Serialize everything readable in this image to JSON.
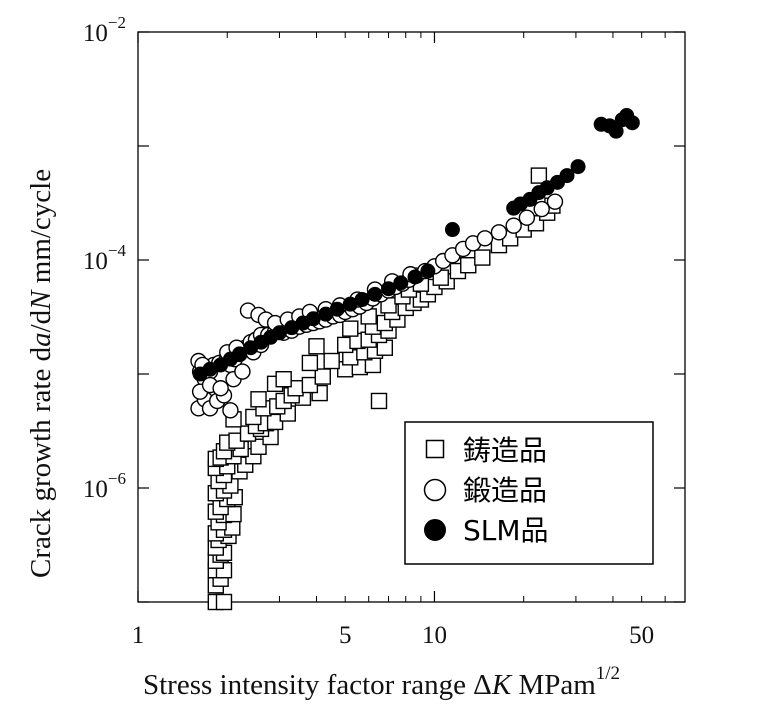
{
  "chart_data": {
    "type": "scatter",
    "xlabel": "Stress intensity factor range ΔK MPam^1/2",
    "xlabel_parts": {
      "main": "Stress intensity factor range  Δ",
      "italic": "K",
      "unit": "  MPam",
      "sup": "1/2"
    },
    "ylabel": "Crack growth rate da/dN mm/cycle",
    "ylabel_parts": {
      "main": "Crack growth rate d",
      "italic_a": "a",
      "mid": "/d",
      "italic_N": "N",
      "unit": "  mm/cycle"
    },
    "x_scale": "log",
    "y_scale": "log",
    "xlim": [
      1,
      70
    ],
    "ylim": [
      1e-07,
      0.01
    ],
    "x_ticks": [
      {
        "value": 1,
        "label": "1"
      },
      {
        "value": 5,
        "label": "5"
      },
      {
        "value": 10,
        "label": "10"
      },
      {
        "value": 50,
        "label": "50"
      }
    ],
    "y_ticks": [
      {
        "value": 0.01,
        "base": "10",
        "exp": "−2"
      },
      {
        "value": 0.0001,
        "base": "10",
        "exp": "−4"
      },
      {
        "value": 1e-06,
        "base": "10",
        "exp": "−6"
      }
    ],
    "grid": false,
    "legend_position": "bottom-right",
    "series": [
      {
        "name": "鋳造品",
        "marker": "square-open",
        "color": "#000000",
        "points": [
          [
            1.83,
            1e-07
          ],
          [
            1.95,
            1e-07
          ],
          [
            1.83,
            1.4e-07
          ],
          [
            1.9,
            1.6e-07
          ],
          [
            1.83,
            1.9e-07
          ],
          [
            1.95,
            1.9e-07
          ],
          [
            1.83,
            2.3e-07
          ],
          [
            1.9,
            2.6e-07
          ],
          [
            1.95,
            2.7e-07
          ],
          [
            1.83,
            3e-07
          ],
          [
            1.87,
            3.5e-07
          ],
          [
            2.02,
            3.8e-07
          ],
          [
            1.83,
            4e-07
          ],
          [
            1.95,
            4.3e-07
          ],
          [
            2.08,
            4.5e-07
          ],
          [
            1.87,
            5e-07
          ],
          [
            1.95,
            5.8e-07
          ],
          [
            2.1,
            5.9e-07
          ],
          [
            1.83,
            6.2e-07
          ],
          [
            1.9,
            6.8e-07
          ],
          [
            2.0,
            8e-07
          ],
          [
            2.12,
            8.3e-07
          ],
          [
            1.83,
            9e-07
          ],
          [
            1.95,
            9.5e-07
          ],
          [
            2.05,
            1.05e-06
          ],
          [
            1.87,
            1.15e-06
          ],
          [
            1.95,
            1.3e-06
          ],
          [
            2.2,
            1.4e-06
          ],
          [
            1.83,
            1.5e-06
          ],
          [
            2.0,
            1.55e-06
          ],
          [
            2.3,
            1.6e-06
          ],
          [
            1.83,
            1.8e-06
          ],
          [
            1.9,
            1.85e-06
          ],
          [
            2.1,
            1.9e-06
          ],
          [
            2.45,
            1.9e-06
          ],
          [
            1.95,
            2.1e-06
          ],
          [
            2.22,
            2.2e-06
          ],
          [
            2.55,
            2.3e-06
          ],
          [
            2.0,
            2.5e-06
          ],
          [
            2.15,
            2.6e-06
          ],
          [
            2.8,
            2.8e-06
          ],
          [
            2.35,
            3e-06
          ],
          [
            2.6,
            3.3e-06
          ],
          [
            2.5,
            3.5e-06
          ],
          [
            2.7,
            3.7e-06
          ],
          [
            2.9,
            3.8e-06
          ],
          [
            2.1,
            4e-06
          ],
          [
            2.45,
            4.2e-06
          ],
          [
            3.2,
            4.5e-06
          ],
          [
            2.65,
            5e-06
          ],
          [
            2.95,
            5.2e-06
          ],
          [
            3.1,
            5.8e-06
          ],
          [
            2.55,
            6e-06
          ],
          [
            3.6,
            6.2e-06
          ],
          [
            3.3,
            6.5e-06
          ],
          [
            4.1,
            6.8e-06
          ],
          [
            3.4,
            7.5e-06
          ],
          [
            3.8,
            8e-06
          ],
          [
            2.9,
            8.2e-06
          ],
          [
            3.1,
            9e-06
          ],
          [
            4.2,
            9.5e-06
          ],
          [
            5.0,
            1.1e-05
          ],
          [
            5.6,
            1.15e-05
          ],
          [
            6.2,
            1.2e-05
          ],
          [
            3.8,
            1.25e-05
          ],
          [
            4.5,
            1.3e-05
          ],
          [
            5.2,
            1.4e-05
          ],
          [
            5.8,
            1.55e-05
          ],
          [
            6.3,
            1.6e-05
          ],
          [
            6.8,
            1.7e-05
          ],
          [
            4.0,
            1.75e-05
          ],
          [
            5.0,
            1.8e-05
          ],
          [
            5.5,
            1.95e-05
          ],
          [
            6.0,
            2e-05
          ],
          [
            6.5,
            2.2e-05
          ],
          [
            7.0,
            2.4e-05
          ],
          [
            5.2,
            2.5e-05
          ],
          [
            6.2,
            2.6e-05
          ],
          [
            6.8,
            2.8e-05
          ],
          [
            7.5,
            3e-05
          ],
          [
            6.0,
            3.2e-05
          ],
          [
            7.2,
            3.5e-05
          ],
          [
            8.0,
            3.8e-05
          ],
          [
            7.0,
            4e-05
          ],
          [
            8.5,
            4.2e-05
          ],
          [
            9.0,
            4.5e-05
          ],
          [
            7.8,
            4.8e-05
          ],
          [
            9.5,
            5e-05
          ],
          [
            8.2,
            5.5e-05
          ],
          [
            10.0,
            5.8e-05
          ],
          [
            9.0,
            6.2e-05
          ],
          [
            11.0,
            6.5e-05
          ],
          [
            10.5,
            7e-05
          ],
          [
            12.0,
            8e-05
          ],
          [
            13.0,
            9e-05
          ],
          [
            14.5,
            0.000105
          ],
          [
            16.5,
            0.000135
          ],
          [
            18.0,
            0.000155
          ],
          [
            20.0,
            0.000185
          ],
          [
            22.0,
            0.00021
          ],
          [
            24.0,
            0.00026
          ],
          [
            25.0,
            0.0003
          ],
          [
            22.5,
            0.00055
          ],
          [
            6.5,
            5.8e-06
          ]
        ]
      },
      {
        "name": "鍛造品",
        "marker": "circle-open",
        "color": "#000000",
        "points": [
          [
            1.6,
            1.3e-05
          ],
          [
            1.62,
            1.05e-05
          ],
          [
            1.68,
            9e-06
          ],
          [
            1.75,
            1.05e-05
          ],
          [
            1.8,
            1.2e-05
          ],
          [
            1.88,
            1.25e-05
          ],
          [
            1.98,
            1.3e-05
          ],
          [
            2.05,
            1.2e-05
          ],
          [
            2.12,
            1.35e-05
          ],
          [
            2.2,
            1.5e-05
          ],
          [
            2.3,
            1.7e-05
          ],
          [
            2.4,
            1.9e-05
          ],
          [
            2.5,
            2e-05
          ],
          [
            2.6,
            2.2e-05
          ],
          [
            2.75,
            2.2e-05
          ],
          [
            2.9,
            2.35e-05
          ],
          [
            3.1,
            2.3e-05
          ],
          [
            3.3,
            2.4e-05
          ],
          [
            3.5,
            2.6e-05
          ],
          [
            3.7,
            2.7e-05
          ],
          [
            3.9,
            2.8e-05
          ],
          [
            4.1,
            2.9e-05
          ],
          [
            4.3,
            3e-05
          ],
          [
            4.55,
            3.2e-05
          ],
          [
            4.8,
            3.3e-05
          ],
          [
            5.0,
            3.5e-05
          ],
          [
            5.3,
            3.7e-05
          ],
          [
            5.6,
            3.9e-05
          ],
          [
            5.9,
            4.2e-05
          ],
          [
            6.2,
            4.6e-05
          ],
          [
            6.6,
            5e-05
          ],
          [
            7.0,
            5.4e-05
          ],
          [
            7.4,
            5.8e-05
          ],
          [
            7.8,
            6.2e-05
          ],
          [
            8.2,
            6.7e-05
          ],
          [
            8.7,
            7.3e-05
          ],
          [
            9.3,
            8e-05
          ],
          [
            10.0,
            8.8e-05
          ],
          [
            10.7,
            9.8e-05
          ],
          [
            11.5,
            0.00011
          ],
          [
            12.5,
            0.000125
          ],
          [
            13.5,
            0.00014
          ],
          [
            14.8,
            0.000155
          ],
          [
            16.5,
            0.000175
          ],
          [
            18.5,
            0.0002
          ],
          [
            20.5,
            0.000235
          ],
          [
            23.0,
            0.00028
          ],
          [
            25.5,
            0.000325
          ],
          [
            2.35,
            3.6e-05
          ],
          [
            2.55,
            3.3e-05
          ],
          [
            2.7,
            3e-05
          ],
          [
            2.9,
            2.8e-05
          ],
          [
            3.2,
            3e-05
          ],
          [
            3.5,
            3.2e-05
          ],
          [
            3.8,
            3.5e-05
          ],
          [
            4.3,
            3.7e-05
          ],
          [
            4.8,
            4e-05
          ],
          [
            5.5,
            4.5e-05
          ],
          [
            6.3,
            5.5e-05
          ],
          [
            7.2,
            6.5e-05
          ],
          [
            8.3,
            7.5e-05
          ],
          [
            1.6,
            5e-06
          ],
          [
            1.68,
            6e-06
          ],
          [
            1.75,
            5e-06
          ],
          [
            1.85,
            5.8e-06
          ],
          [
            1.95,
            6.5e-06
          ],
          [
            2.05,
            4.8e-06
          ],
          [
            1.62,
            7e-06
          ],
          [
            1.75,
            8e-06
          ],
          [
            1.9,
            7.5e-06
          ],
          [
            2.1,
            9e-06
          ],
          [
            2.25,
            1.05e-05
          ],
          [
            1.65,
            1.2e-05
          ],
          [
            2.0,
            1.55e-05
          ],
          [
            2.15,
            1.7e-05
          ],
          [
            2.45,
            1.55e-05
          ],
          [
            2.6,
            1.8e-05
          ]
        ]
      },
      {
        "name": "SLM品",
        "marker": "circle-filled",
        "color": "#000000",
        "points": [
          [
            1.62,
            1e-05
          ],
          [
            1.75,
            1.1e-05
          ],
          [
            1.9,
            1.2e-05
          ],
          [
            2.05,
            1.35e-05
          ],
          [
            2.2,
            1.5e-05
          ],
          [
            2.4,
            1.7e-05
          ],
          [
            2.6,
            1.9e-05
          ],
          [
            2.8,
            2.1e-05
          ],
          [
            3.0,
            2.3e-05
          ],
          [
            3.3,
            2.55e-05
          ],
          [
            3.6,
            2.8e-05
          ],
          [
            3.9,
            3.05e-05
          ],
          [
            4.3,
            3.35e-05
          ],
          [
            4.7,
            3.7e-05
          ],
          [
            5.2,
            4.1e-05
          ],
          [
            5.7,
            4.5e-05
          ],
          [
            6.3,
            5e-05
          ],
          [
            7.0,
            5.6e-05
          ],
          [
            7.7,
            6.3e-05
          ],
          [
            8.6,
            7.1e-05
          ],
          [
            9.5,
            8e-05
          ],
          [
            11.5,
            0.000185
          ],
          [
            18.5,
            0.000285
          ],
          [
            19.5,
            0.00031
          ],
          [
            21.0,
            0.00034
          ],
          [
            22.5,
            0.00039
          ],
          [
            24.0,
            0.00043
          ],
          [
            26.0,
            0.00048
          ],
          [
            28.0,
            0.00055
          ],
          [
            30.5,
            0.00066
          ],
          [
            36.5,
            0.00155
          ],
          [
            39.0,
            0.0015
          ],
          [
            41.0,
            0.00135
          ],
          [
            43.0,
            0.0017
          ],
          [
            44.5,
            0.00185
          ],
          [
            46.5,
            0.0016
          ]
        ]
      }
    ]
  }
}
